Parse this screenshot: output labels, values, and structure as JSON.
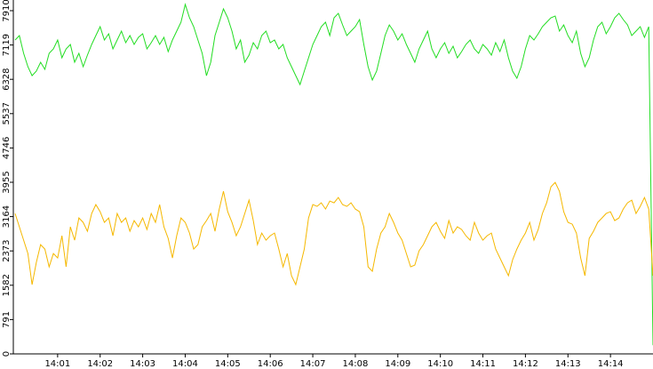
{
  "chart_data": {
    "type": "line",
    "categories": [
      null,
      null,
      null,
      null,
      null,
      null,
      null,
      null,
      null,
      null,
      "14:01",
      null,
      null,
      null,
      null,
      null,
      null,
      null,
      null,
      null,
      "14:02",
      null,
      null,
      null,
      null,
      null,
      null,
      null,
      null,
      null,
      "14:03",
      null,
      null,
      null,
      null,
      null,
      null,
      null,
      null,
      null,
      "14:04",
      null,
      null,
      null,
      null,
      null,
      null,
      null,
      null,
      null,
      "14:05",
      null,
      null,
      null,
      null,
      null,
      null,
      null,
      null,
      null,
      "14:06",
      null,
      null,
      null,
      null,
      null,
      null,
      null,
      null,
      null,
      "14:07",
      null,
      null,
      null,
      null,
      null,
      null,
      null,
      null,
      null,
      "14:08",
      null,
      null,
      null,
      null,
      null,
      null,
      null,
      null,
      null,
      "14:09",
      null,
      null,
      null,
      null,
      null,
      null,
      null,
      null,
      null,
      "14:10",
      null,
      null,
      null,
      null,
      null,
      null,
      null,
      null,
      null,
      "14:11",
      null,
      null,
      null,
      null,
      null,
      null,
      null,
      null,
      null,
      "14:12",
      null,
      null,
      null,
      null,
      null,
      null,
      null,
      null,
      null,
      "14:13",
      null,
      null,
      null,
      null,
      null,
      null,
      null,
      null,
      null,
      "14:14",
      null,
      null,
      null,
      null,
      null,
      null,
      null,
      null,
      null,
      null
    ],
    "series": [
      {
        "color": "#22dd22",
        "values": [
          7233,
          7336,
          6926,
          6618,
          6413,
          6516,
          6721,
          6557,
          6926,
          7028,
          7233,
          6823,
          7028,
          7131,
          6721,
          6926,
          6618,
          6885,
          7131,
          7336,
          7541,
          7233,
          7377,
          7028,
          7233,
          7438,
          7172,
          7336,
          7131,
          7295,
          7377,
          7028,
          7172,
          7336,
          7131,
          7295,
          6967,
          7233,
          7438,
          7643,
          8053,
          7746,
          7541,
          7233,
          6926,
          6413,
          6721,
          7336,
          7643,
          7951,
          7746,
          7438,
          7028,
          7233,
          6721,
          6885,
          7172,
          7028,
          7336,
          7438,
          7172,
          7233,
          7028,
          7131,
          6823,
          6618,
          6413,
          6208,
          6516,
          6823,
          7131,
          7336,
          7541,
          7643,
          7336,
          7746,
          7848,
          7582,
          7336,
          7438,
          7541,
          7705,
          7131,
          6618,
          6311,
          6516,
          6926,
          7336,
          7582,
          7438,
          7233,
          7377,
          7131,
          6926,
          6721,
          7028,
          7233,
          7438,
          7028,
          6823,
          7028,
          7172,
          6926,
          7090,
          6823,
          6967,
          7131,
          7233,
          7028,
          6926,
          7131,
          7028,
          6885,
          7172,
          6967,
          7233,
          6823,
          6516,
          6352,
          6618,
          7028,
          7336,
          7233,
          7377,
          7541,
          7643,
          7746,
          7787,
          7438,
          7582,
          7336,
          7172,
          7438,
          6926,
          6618,
          6823,
          7233,
          7541,
          7643,
          7377,
          7541,
          7746,
          7848,
          7705,
          7582,
          7336,
          7438,
          7541,
          7295,
          7541,
          200
        ]
      },
      {
        "color": "#f5b800",
        "values": [
          3236,
          2928,
          2621,
          2313,
          1596,
          2108,
          2518,
          2416,
          2006,
          2313,
          2211,
          2723,
          2006,
          2928,
          2621,
          3133,
          3031,
          2826,
          3236,
          3441,
          3277,
          3031,
          3133,
          2723,
          3236,
          3031,
          3133,
          2826,
          3072,
          2928,
          3133,
          2867,
          3236,
          3031,
          3441,
          2928,
          2662,
          2211,
          2723,
          3133,
          3031,
          2785,
          2416,
          2518,
          2928,
          3072,
          3236,
          2826,
          3338,
          3748,
          3277,
          3031,
          2723,
          2928,
          3236,
          3543,
          3072,
          2518,
          2785,
          2621,
          2723,
          2785,
          2416,
          2006,
          2313,
          1801,
          1596,
          2006,
          2416,
          3133,
          3441,
          3400,
          3482,
          3338,
          3523,
          3482,
          3605,
          3441,
          3400,
          3482,
          3338,
          3277,
          2928,
          2006,
          1903,
          2416,
          2785,
          2928,
          3236,
          3031,
          2785,
          2621,
          2313,
          2006,
          2047,
          2375,
          2518,
          2723,
          2928,
          3031,
          2826,
          2662,
          3072,
          2785,
          2928,
          2867,
          2723,
          2621,
          3031,
          2785,
          2621,
          2723,
          2785,
          2416,
          2211,
          2006,
          1801,
          2170,
          2416,
          2621,
          2785,
          3031,
          2621,
          2867,
          3236,
          3482,
          3851,
          3953,
          3748,
          3277,
          3031,
          2990,
          2785,
          2211,
          1801,
          2662,
          2826,
          3031,
          3133,
          3236,
          3277,
          3072,
          3133,
          3338,
          3482,
          3543,
          3236,
          3400,
          3605,
          3338,
          1801
        ]
      }
    ],
    "ylim": [
      0,
      7910
    ],
    "yticks": [
      0,
      791,
      1582,
      2373,
      3164,
      3955,
      4746,
      5537,
      6328,
      7119,
      7910
    ]
  }
}
